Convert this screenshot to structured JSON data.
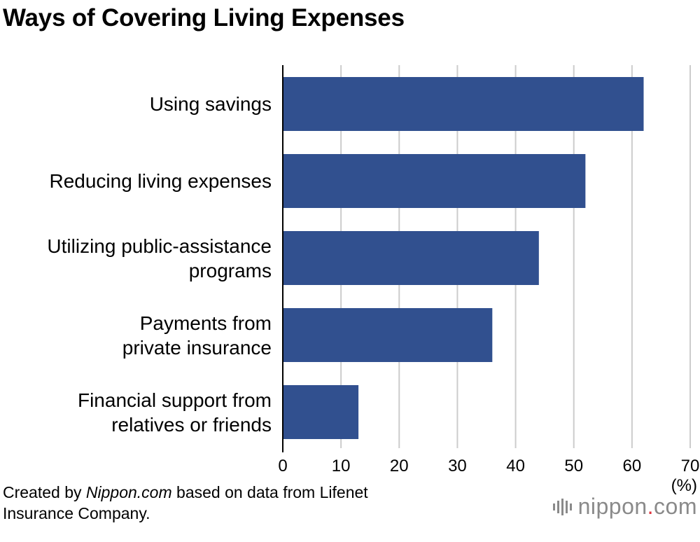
{
  "title": "Ways of Covering Living Expenses",
  "chart_data": {
    "type": "bar",
    "orientation": "horizontal",
    "title": "Ways of Covering Living Expenses",
    "categories": [
      [
        "Using savings"
      ],
      [
        "Reducing living expenses"
      ],
      [
        "Utilizing public-assistance",
        "programs"
      ],
      [
        "Payments from",
        "private insurance"
      ],
      [
        "Financial support from",
        "relatives or friends"
      ]
    ],
    "values": [
      62,
      52,
      44,
      36,
      13
    ],
    "xlim": [
      0,
      70
    ],
    "xticks": [
      "0",
      "10",
      "20",
      "30",
      "40",
      "50",
      "60",
      "70"
    ],
    "xlabel": "(%)",
    "ylabel": "",
    "grid": true,
    "bar_color": "#31508f",
    "grid_color": "#cccccc"
  },
  "source": {
    "prefix": "Created by ",
    "italic": "Nippon.com",
    "suffix_line1": " based on data from Lifenet",
    "line2": "Insurance Company."
  },
  "logo": {
    "text_main": "nippon",
    "dot": ".",
    "text_end": "com",
    "accent_color": "#e0323c"
  }
}
